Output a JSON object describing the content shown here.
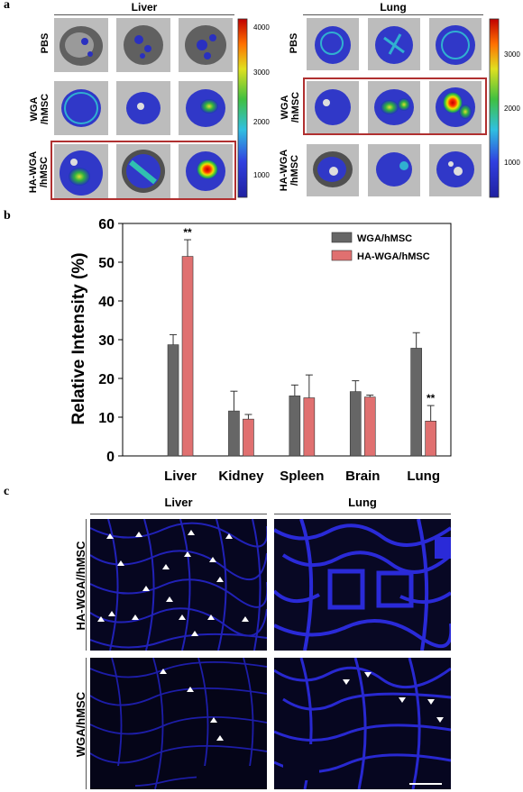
{
  "panel_a": {
    "letter": "a",
    "liver_title": "Liver",
    "lung_title": "Lung",
    "rows": [
      "PBS",
      "WGA\n/hMSC",
      "HA-WGA\n/hMSC"
    ],
    "liver_colorbar_ticks": [
      "4000",
      "3000",
      "2000",
      "1000"
    ],
    "lung_colorbar_ticks": [
      "3000",
      "2000",
      "1000"
    ]
  },
  "panel_b": {
    "letter": "b"
  },
  "chart_data": {
    "type": "bar",
    "categories": [
      "Liver",
      "Kidney",
      "Spleen",
      "Brain",
      "Lung"
    ],
    "series": [
      {
        "name": "WGA/hMSC",
        "color": "#666666",
        "values": [
          28.7,
          11.6,
          15.5,
          16.6,
          27.8
        ],
        "errors": [
          2.6,
          5.1,
          2.8,
          2.8,
          4.0
        ]
      },
      {
        "name": "HA-WGA/hMSC",
        "color": "#e07070",
        "values": [
          51.5,
          9.5,
          15.0,
          15.2,
          9.0
        ],
        "errors": [
          4.3,
          1.2,
          5.9,
          0.5,
          4.0
        ]
      }
    ],
    "ylabel": "Relative Intensity (%)",
    "xlabel": "",
    "ylim": [
      0,
      60
    ],
    "yticks": [
      0,
      10,
      20,
      30,
      40,
      50,
      60
    ],
    "annotations": [
      {
        "category": "Liver",
        "series": "HA-WGA/hMSC",
        "text": "**"
      },
      {
        "category": "Lung",
        "series": "HA-WGA/hMSC",
        "text": "**"
      }
    ],
    "legend_position": "top-right",
    "grid": false
  },
  "panel_c": {
    "letter": "c",
    "liver_title": "Liver",
    "lung_title": "Lung",
    "row_top": "HA-WGA//hMSC",
    "row_bottom": "WGA/hMSC"
  },
  "colors": {
    "bar_wga": "#666666",
    "bar_hawga": "#e07070",
    "highlight_box": "#b03030",
    "tissue_blue": "#2a2ad0"
  }
}
